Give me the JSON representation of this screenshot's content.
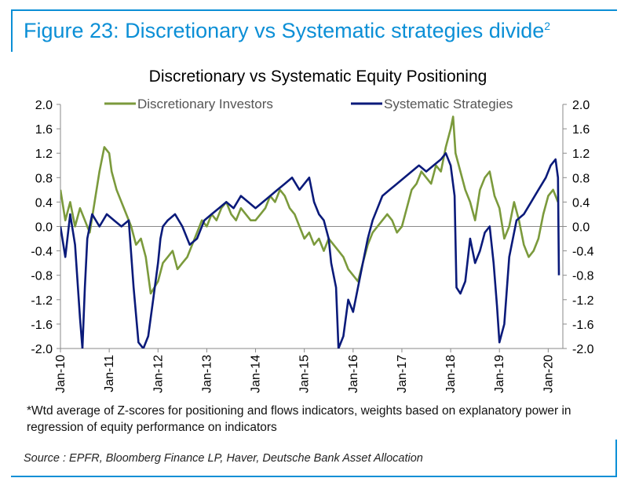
{
  "figure": {
    "title": "Figure 23: Discretionary vs Systematic strategies divide",
    "title_sup": "2",
    "accent_color": "#0b8fd6"
  },
  "chart_data": {
    "type": "line",
    "title": "Discretionary  vs Systematic Equity Positioning",
    "xlabel": "",
    "ylabel": "",
    "ylim": [
      -2.0,
      2.0
    ],
    "y_ticks": [
      "2.0",
      "1.6",
      "1.2",
      "0.8",
      "0.4",
      "0.0",
      "-0.4",
      "-0.8",
      "-1.2",
      "-1.6",
      "-2.0"
    ],
    "x_ticks": [
      "Jan-10",
      "Jan-11",
      "Jan-12",
      "Jan-13",
      "Jan-14",
      "Jan-15",
      "Jan-16",
      "Jan-17",
      "Jan-18",
      "Jan-19",
      "Jan-20"
    ],
    "xlim": [
      2010.0,
      2020.3
    ],
    "legend_position": "top",
    "series": [
      {
        "name": "Discretionary Investors",
        "color": "#7b9a3c",
        "x": [
          2010.0,
          2010.1,
          2010.2,
          2010.3,
          2010.4,
          2010.5,
          2010.6,
          2010.7,
          2010.8,
          2010.9,
          2011.0,
          2011.05,
          2011.15,
          2011.25,
          2011.35,
          2011.45,
          2011.55,
          2011.65,
          2011.75,
          2011.85,
          2012.0,
          2012.1,
          2012.2,
          2012.3,
          2012.4,
          2012.5,
          2012.6,
          2012.7,
          2012.8,
          2012.9,
          2013.0,
          2013.1,
          2013.2,
          2013.3,
          2013.4,
          2013.5,
          2013.6,
          2013.7,
          2013.8,
          2013.9,
          2014.0,
          2014.1,
          2014.2,
          2014.3,
          2014.4,
          2014.5,
          2014.6,
          2014.7,
          2014.8,
          2014.9,
          2015.0,
          2015.1,
          2015.2,
          2015.3,
          2015.4,
          2015.5,
          2015.6,
          2015.7,
          2015.8,
          2015.9,
          2016.0,
          2016.1,
          2016.2,
          2016.3,
          2016.4,
          2016.5,
          2016.6,
          2016.7,
          2016.8,
          2016.9,
          2017.0,
          2017.1,
          2017.2,
          2017.3,
          2017.4,
          2017.5,
          2017.6,
          2017.7,
          2017.8,
          2017.9,
          2018.0,
          2018.05,
          2018.1,
          2018.2,
          2018.3,
          2018.4,
          2018.5,
          2018.6,
          2018.7,
          2018.8,
          2018.9,
          2019.0,
          2019.1,
          2019.2,
          2019.3,
          2019.4,
          2019.5,
          2019.6,
          2019.7,
          2019.8,
          2019.9,
          2020.0,
          2020.1,
          2020.2
        ],
        "values": [
          0.6,
          0.1,
          0.4,
          0.0,
          0.3,
          0.1,
          -0.1,
          0.4,
          0.9,
          1.3,
          1.2,
          0.9,
          0.6,
          0.4,
          0.2,
          0.0,
          -0.3,
          -0.2,
          -0.5,
          -1.1,
          -0.9,
          -0.6,
          -0.5,
          -0.4,
          -0.7,
          -0.6,
          -0.5,
          -0.3,
          -0.1,
          0.1,
          0.0,
          0.2,
          0.1,
          0.3,
          0.4,
          0.2,
          0.1,
          0.3,
          0.2,
          0.1,
          0.1,
          0.2,
          0.3,
          0.5,
          0.4,
          0.6,
          0.5,
          0.3,
          0.2,
          0.0,
          -0.2,
          -0.1,
          -0.3,
          -0.2,
          -0.4,
          -0.2,
          -0.3,
          -0.4,
          -0.5,
          -0.7,
          -0.8,
          -0.9,
          -0.6,
          -0.3,
          -0.1,
          0.0,
          0.1,
          0.2,
          0.1,
          -0.1,
          0.0,
          0.3,
          0.6,
          0.7,
          0.9,
          0.8,
          0.7,
          1.0,
          0.9,
          1.3,
          1.6,
          1.8,
          1.2,
          0.9,
          0.6,
          0.4,
          0.1,
          0.6,
          0.8,
          0.9,
          0.5,
          0.3,
          -0.2,
          0.0,
          0.4,
          0.1,
          -0.3,
          -0.5,
          -0.4,
          -0.2,
          0.2,
          0.5,
          0.6,
          0.4
        ]
      },
      {
        "name": "Systematic Strategies",
        "color": "#0a1a7a",
        "x": [
          2010.0,
          2010.1,
          2010.2,
          2010.3,
          2010.4,
          2010.45,
          2010.5,
          2010.55,
          2010.65,
          2010.8,
          2010.95,
          2011.1,
          2011.25,
          2011.4,
          2011.5,
          2011.6,
          2011.7,
          2011.8,
          2011.9,
          2012.0,
          2012.05,
          2012.1,
          2012.2,
          2012.35,
          2012.5,
          2012.65,
          2012.8,
          2012.95,
          2013.1,
          2013.25,
          2013.4,
          2013.55,
          2013.7,
          2013.85,
          2014.0,
          2014.15,
          2014.3,
          2014.45,
          2014.6,
          2014.75,
          2014.9,
          2015.0,
          2015.1,
          2015.2,
          2015.3,
          2015.4,
          2015.5,
          2015.55,
          2015.65,
          2015.7,
          2015.8,
          2015.9,
          2016.0,
          2016.1,
          2016.2,
          2016.3,
          2016.4,
          2016.5,
          2016.6,
          2016.75,
          2016.9,
          2017.05,
          2017.2,
          2017.35,
          2017.5,
          2017.65,
          2017.8,
          2017.9,
          2018.0,
          2018.08,
          2018.12,
          2018.2,
          2018.3,
          2018.4,
          2018.5,
          2018.6,
          2018.7,
          2018.8,
          2018.88,
          2018.95,
          2019.0,
          2019.1,
          2019.2,
          2019.35,
          2019.5,
          2019.65,
          2019.8,
          2019.95,
          2020.05,
          2020.15,
          2020.2,
          2020.22
        ],
        "values": [
          0.0,
          -0.5,
          0.2,
          -0.3,
          -1.5,
          -2.0,
          -1.0,
          -0.2,
          0.2,
          0.0,
          0.2,
          0.1,
          0.0,
          0.1,
          -1.0,
          -1.9,
          -2.0,
          -1.8,
          -1.2,
          -0.6,
          -0.2,
          0.0,
          0.1,
          0.2,
          0.0,
          -0.3,
          -0.2,
          0.1,
          0.2,
          0.3,
          0.4,
          0.3,
          0.5,
          0.4,
          0.3,
          0.4,
          0.5,
          0.6,
          0.7,
          0.8,
          0.6,
          0.7,
          0.8,
          0.4,
          0.2,
          0.1,
          -0.2,
          -0.6,
          -1.0,
          -2.0,
          -1.8,
          -1.2,
          -1.4,
          -1.0,
          -0.6,
          -0.2,
          0.1,
          0.3,
          0.5,
          0.6,
          0.7,
          0.8,
          0.9,
          1.0,
          0.9,
          1.0,
          1.1,
          1.2,
          1.0,
          0.5,
          -1.0,
          -1.1,
          -0.9,
          -0.2,
          -0.6,
          -0.4,
          -0.1,
          0.0,
          -0.6,
          -1.3,
          -1.9,
          -1.6,
          -0.5,
          0.1,
          0.2,
          0.4,
          0.6,
          0.8,
          1.0,
          1.1,
          0.8,
          -0.8
        ]
      }
    ]
  },
  "footnote": "*Wtd average of Z-scores for positioning and flows indicators, weights based on explanatory power in regression of equity performance on indicators",
  "source": "Source : EPFR, Bloomberg Finance LP, Haver, Deutsche Bank Asset Allocation"
}
